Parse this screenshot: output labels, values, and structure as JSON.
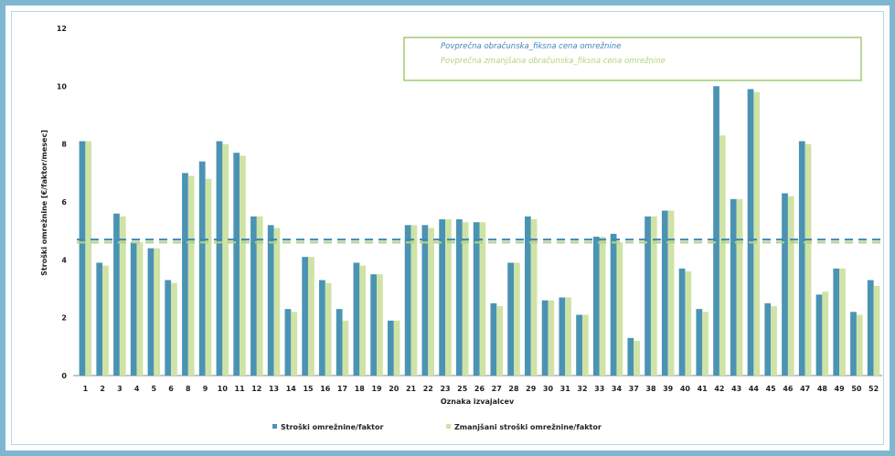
{
  "chart_data": {
    "type": "bar",
    "ylabel": "Stroški omrežnine [€/faktor/mesec]",
    "xlabel": "Oznaka izvajalcev",
    "ylim": [
      0,
      12
    ],
    "yticks": [
      "0",
      "2",
      "4",
      "6",
      "8",
      "10",
      "12"
    ],
    "grid": false,
    "legend_position": "bottom",
    "colors": {
      "series1": "#4a93b3",
      "series2": "#cfe3a6",
      "line1": "#3f86b8",
      "line2": "#b4d37c"
    },
    "categories": [
      "1",
      "2",
      "3",
      "4",
      "5",
      "6",
      "8",
      "9",
      "10",
      "11",
      "12",
      "13",
      "14",
      "15",
      "16",
      "17",
      "18",
      "19",
      "20",
      "21",
      "22",
      "23",
      "25",
      "26",
      "27",
      "28",
      "29",
      "30",
      "31",
      "32",
      "33",
      "34",
      "37",
      "38",
      "39",
      "40",
      "41",
      "42",
      "43",
      "44",
      "45",
      "46",
      "47",
      "48",
      "49",
      "50",
      "52"
    ],
    "series": [
      {
        "name": "Stroški omrežnine/faktor",
        "values": [
          8.1,
          3.9,
          5.6,
          4.6,
          4.4,
          3.3,
          7.0,
          7.4,
          8.1,
          7.7,
          5.5,
          5.2,
          2.3,
          4.1,
          3.3,
          2.3,
          3.9,
          3.5,
          1.9,
          5.2,
          5.2,
          5.4,
          5.4,
          5.3,
          2.5,
          3.9,
          5.5,
          2.6,
          2.7,
          2.1,
          4.8,
          4.9,
          1.3,
          5.5,
          5.7,
          3.7,
          2.3,
          10.0,
          6.1,
          9.9,
          2.5,
          6.3,
          8.1,
          2.8,
          3.7,
          2.2,
          3.3
        ]
      },
      {
        "name": "Zmanjšani stroški omrežnine/faktor",
        "values": [
          8.1,
          3.8,
          5.5,
          4.6,
          4.4,
          3.2,
          6.9,
          6.8,
          8.0,
          7.6,
          5.5,
          5.1,
          2.2,
          4.1,
          3.2,
          1.9,
          3.8,
          3.5,
          1.9,
          5.2,
          5.1,
          5.4,
          5.3,
          5.3,
          2.4,
          3.9,
          5.4,
          2.6,
          2.7,
          2.1,
          4.8,
          4.6,
          1.2,
          5.5,
          5.7,
          3.6,
          2.2,
          8.3,
          6.1,
          9.8,
          2.4,
          6.2,
          8.0,
          2.9,
          3.7,
          2.1,
          3.1
        ]
      }
    ],
    "reference_lines": [
      {
        "name": "Povprečna obračunska_fiksna cena omrežnine",
        "value": 4.7
      },
      {
        "name": "Povprečna zmanjšana obračunska_fiksna cena omrežnine",
        "value": 4.6
      }
    ]
  }
}
